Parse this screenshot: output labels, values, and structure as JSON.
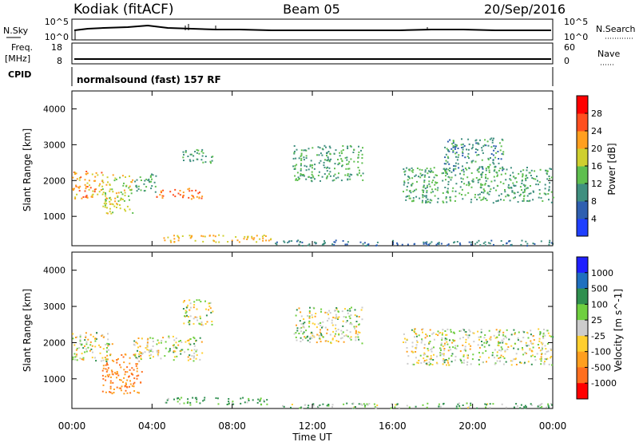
{
  "header": {
    "site": "Kodiak (fitACF)",
    "beam": "Beam 05",
    "date": "20/Sep/2016"
  },
  "top_panels": {
    "nsky": {
      "label": "N.Sky",
      "right_label": "N.Search",
      "left_ticks": [
        "10^5",
        "10^0"
      ],
      "right_ticks": [
        "10^5",
        "10^0"
      ]
    },
    "freq": {
      "label_line1": "Freq.",
      "label_line2": "[MHz]",
      "right_label": "Nave",
      "left_ticks": [
        "18",
        "8"
      ],
      "right_ticks": [
        "60",
        "0"
      ]
    },
    "cpid": {
      "label": "CPID",
      "value": "normalsound (fast) 157 RF"
    }
  },
  "time_axis": {
    "label": "Time UT",
    "ticks": [
      "00:00",
      "04:00",
      "08:00",
      "12:00",
      "16:00",
      "20:00",
      "00:00"
    ]
  },
  "range_axis": {
    "label": "Slant Range [km]",
    "ticks": [
      "1000",
      "2000",
      "3000",
      "4000"
    ]
  },
  "colors": {
    "power_scale": [
      "#1f3fff",
      "#2f5fb0",
      "#3f8f7f",
      "#5fbf4f",
      "#cfcf2f",
      "#ff9f1f",
      "#ff4f1f",
      "#ff0000"
    ],
    "velocity_scale": [
      "#1f1fff",
      "#1f6fbf",
      "#2f8f4f",
      "#6fcf3f",
      "#cccccc",
      "#ffcf2f",
      "#ff9f1f",
      "#ff6f1f",
      "#ff0000"
    ]
  },
  "chart_data": [
    {
      "type": "heatmap",
      "title": "Power",
      "xlabel": "Time UT",
      "ylabel": "Slant Range [km]",
      "xlim": [
        "00:00",
        "24:00"
      ],
      "ylim": [
        180,
        4500
      ],
      "colorbar": {
        "label": "Power [dB]",
        "ticks": [
          "4",
          "8",
          "12",
          "16",
          "20",
          "24",
          "28"
        ]
      },
      "regions": [
        {
          "t0": 0.0,
          "t1": 1.5,
          "r0": 1500,
          "r1": 2300,
          "value": 22
        },
        {
          "t0": 1.5,
          "t1": 3.0,
          "r0": 1100,
          "r1": 2200,
          "value": 18
        },
        {
          "t0": 3.0,
          "t1": 4.2,
          "r0": 1700,
          "r1": 2200,
          "value": 12
        },
        {
          "t0": 4.2,
          "t1": 6.5,
          "r0": 1500,
          "r1": 1800,
          "value": 24
        },
        {
          "t0": 5.5,
          "t1": 7.0,
          "r0": 2500,
          "r1": 2900,
          "value": 12
        },
        {
          "t0": 4.5,
          "t1": 10.0,
          "r0": 300,
          "r1": 500,
          "value": 20
        },
        {
          "t0": 11.0,
          "t1": 14.5,
          "r0": 2000,
          "r1": 3000,
          "value": 12
        },
        {
          "t0": 16.5,
          "t1": 24.0,
          "r0": 1400,
          "r1": 2400,
          "value": 12
        },
        {
          "t0": 18.5,
          "t1": 21.5,
          "r0": 2300,
          "r1": 3200,
          "value": 10
        },
        {
          "t0": 10.0,
          "t1": 24.0,
          "r0": 200,
          "r1": 350,
          "value": 8
        }
      ]
    },
    {
      "type": "heatmap",
      "title": "Velocity",
      "xlabel": "Time UT",
      "ylabel": "Slant Range [km]",
      "xlim": [
        "00:00",
        "24:00"
      ],
      "ylim": [
        180,
        4500
      ],
      "colorbar": {
        "label": "Velocity [m s^-1]",
        "ticks": [
          "1000",
          "500",
          "100",
          "25",
          "-25",
          "-100",
          "-500",
          "-1000"
        ]
      },
      "regions": [
        {
          "t0": 0.0,
          "t1": 2.0,
          "r0": 1500,
          "r1": 2300,
          "value": 0
        },
        {
          "t0": 1.5,
          "t1": 3.5,
          "r0": 600,
          "r1": 1700,
          "value": -300
        },
        {
          "t0": 3.0,
          "t1": 6.5,
          "r0": 1500,
          "r1": 2200,
          "value": 0
        },
        {
          "t0": 5.5,
          "t1": 7.0,
          "r0": 2500,
          "r1": 3200,
          "value": 0
        },
        {
          "t0": 4.5,
          "t1": 10.0,
          "r0": 300,
          "r1": 500,
          "value": 80
        },
        {
          "t0": 11.0,
          "t1": 14.5,
          "r0": 2000,
          "r1": 3000,
          "value": 0
        },
        {
          "t0": 16.5,
          "t1": 24.0,
          "r0": 1400,
          "r1": 2400,
          "value": 0
        },
        {
          "t0": 10.0,
          "t1": 24.0,
          "r0": 200,
          "r1": 350,
          "value": 50
        }
      ]
    }
  ]
}
